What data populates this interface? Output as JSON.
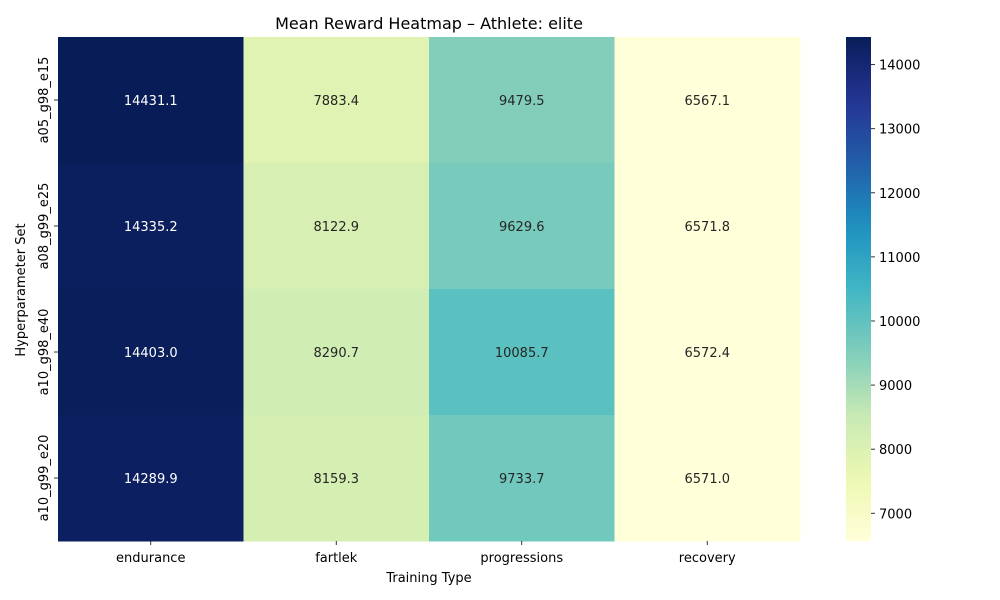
{
  "chart_data": {
    "type": "heatmap",
    "title": "Mean Reward Heatmap – Athlete: elite",
    "xlabel": "Training Type",
    "ylabel": "Hyperparameter Set",
    "x_categories": [
      "endurance",
      "fartlek",
      "progressions",
      "recovery"
    ],
    "y_categories": [
      "a05_g98_e15",
      "a08_g99_e25",
      "a10_g98_e40",
      "a10_g99_e20"
    ],
    "values": [
      [
        14431.1,
        7883.4,
        9479.5,
        6567.1
      ],
      [
        14335.2,
        8122.9,
        9629.6,
        6571.8
      ],
      [
        14403.0,
        8290.7,
        10085.7,
        6572.4
      ],
      [
        14289.9,
        8159.3,
        9733.7,
        6571.0
      ]
    ],
    "colormap": "YlGnBu",
    "vmin": 6567.1,
    "vmax": 14431.1,
    "colorbar_ticks": [
      7000,
      8000,
      9000,
      10000,
      11000,
      12000,
      13000,
      14000
    ],
    "annotation_format": "0.1f"
  }
}
